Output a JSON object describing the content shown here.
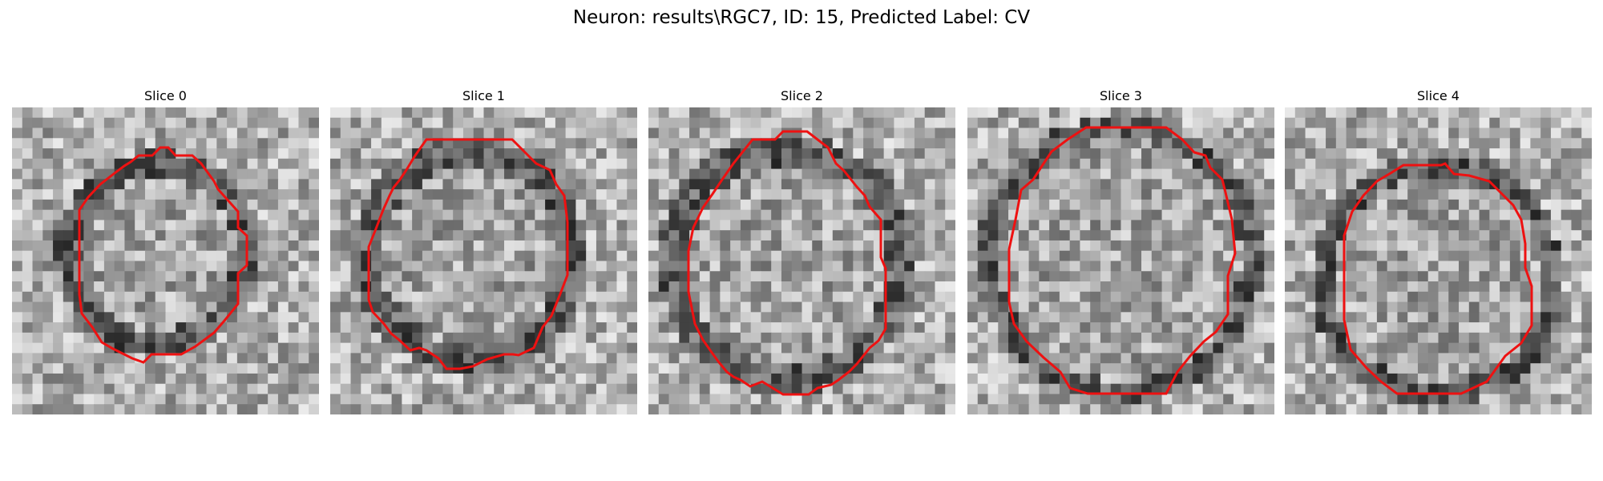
{
  "figure": {
    "title": "Neuron: results\\RGC7, ID: 15, Predicted Label: CV"
  },
  "panels": [
    {
      "title": "Slice 0",
      "contour_color": "#ee1111"
    },
    {
      "title": "Slice 1",
      "contour_color": "#ee1111"
    },
    {
      "title": "Slice 2",
      "contour_color": "#ee1111"
    },
    {
      "title": "Slice 3",
      "contour_color": "#ee1111"
    },
    {
      "title": "Slice 4",
      "contour_color": "#ee1111"
    }
  ]
}
